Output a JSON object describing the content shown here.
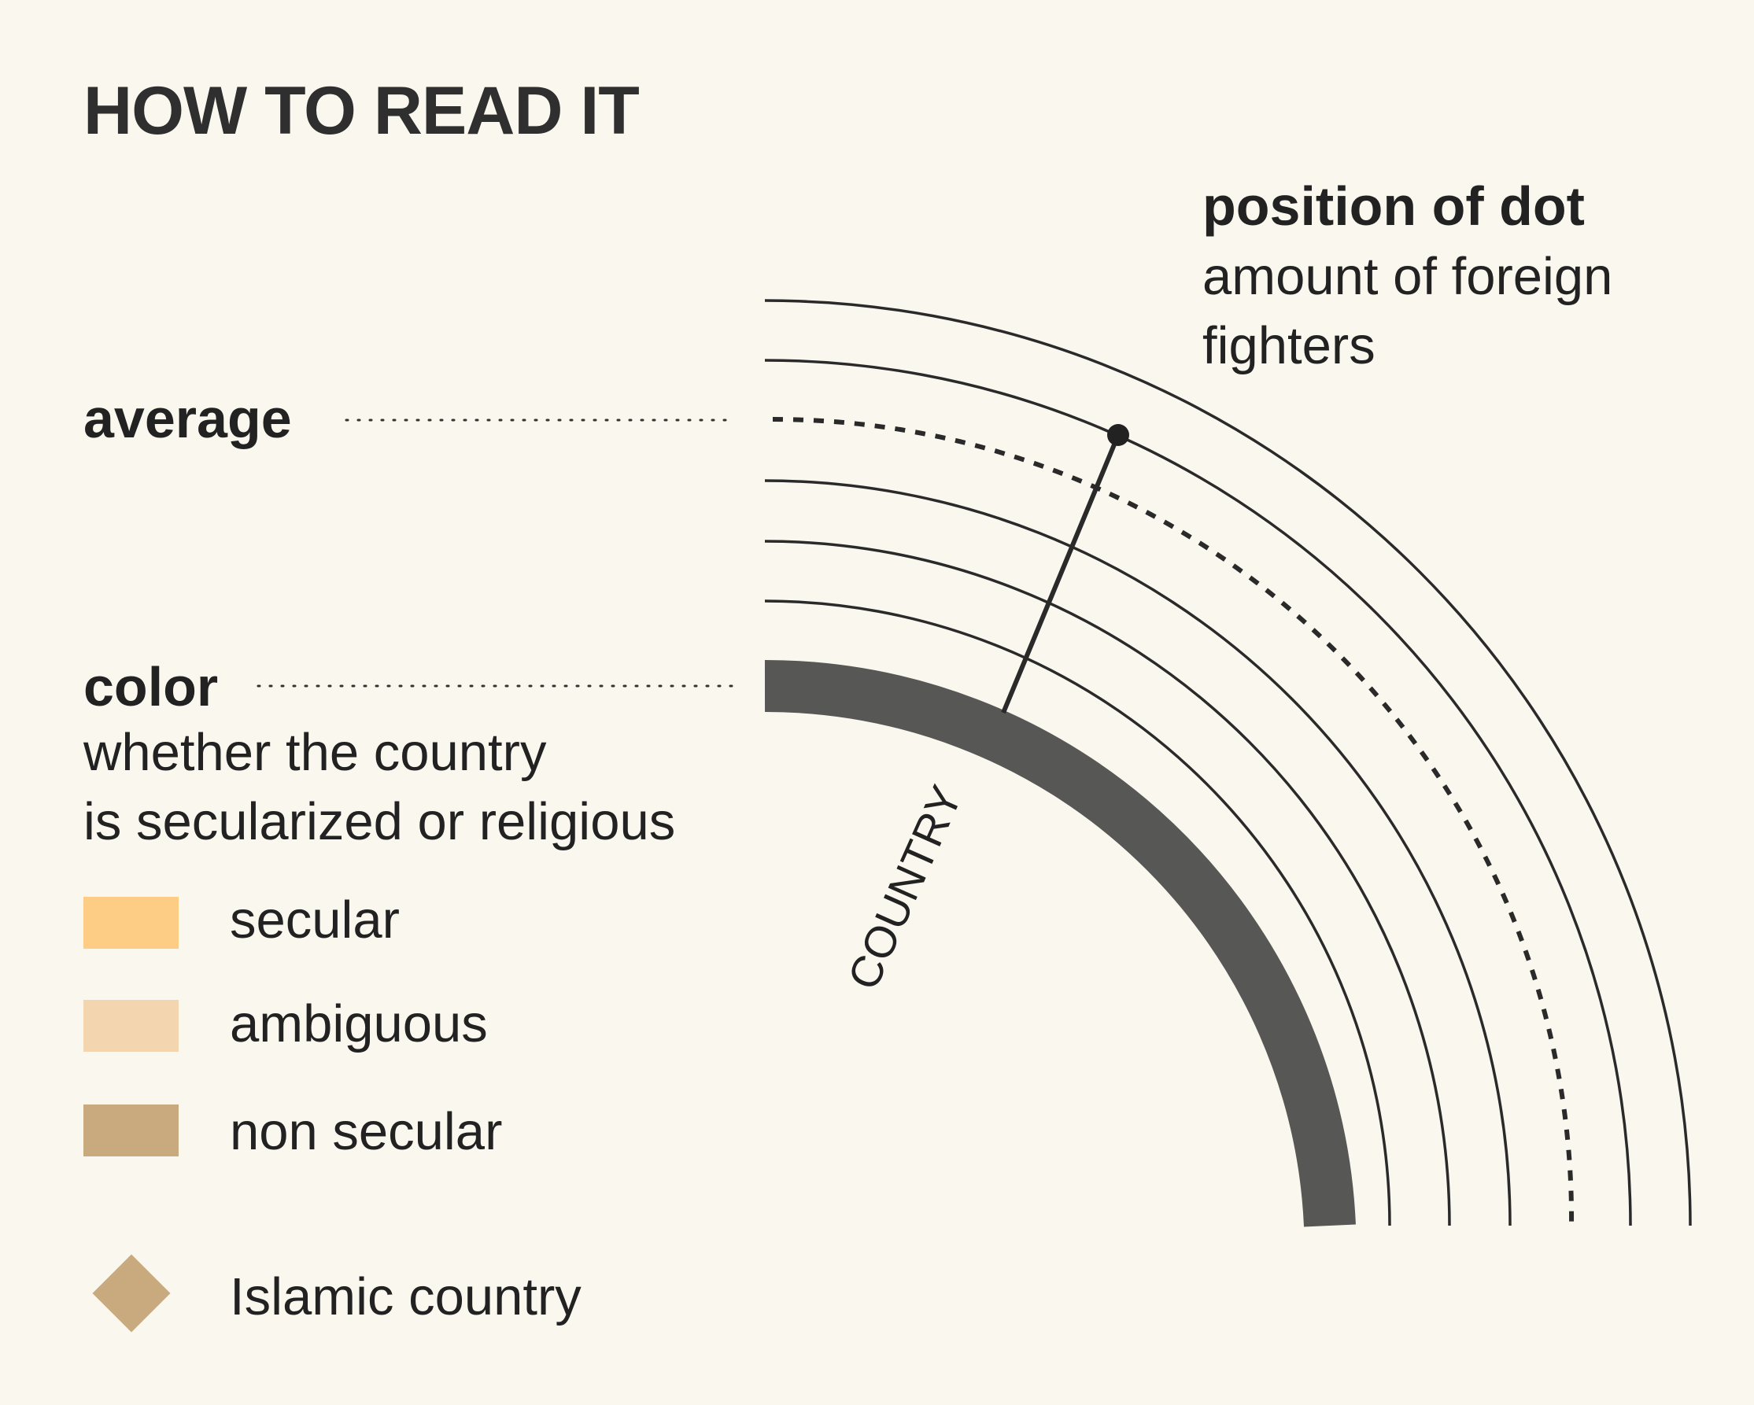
{
  "title": "HOW TO READ IT",
  "position_label": "position of dot",
  "position_desc_1": "amount of foreign",
  "position_desc_2": "fighters",
  "average_label": "average",
  "color_label": "color",
  "color_desc_1": "whether the country",
  "color_desc_2": "is secularized or religious",
  "country_label": "COUNTRY",
  "legend": [
    {
      "label": "secular",
      "color": "#fdcd85"
    },
    {
      "label": "ambiguous",
      "color": "#f3d6b0"
    },
    {
      "label": "non secular",
      "color": "#c8aa7e"
    }
  ],
  "islamic_label": "Islamic country",
  "islamic_color": "#c8aa7e",
  "colors": {
    "background": "#faf8ee",
    "ink": "#222222",
    "band": "#575756"
  }
}
